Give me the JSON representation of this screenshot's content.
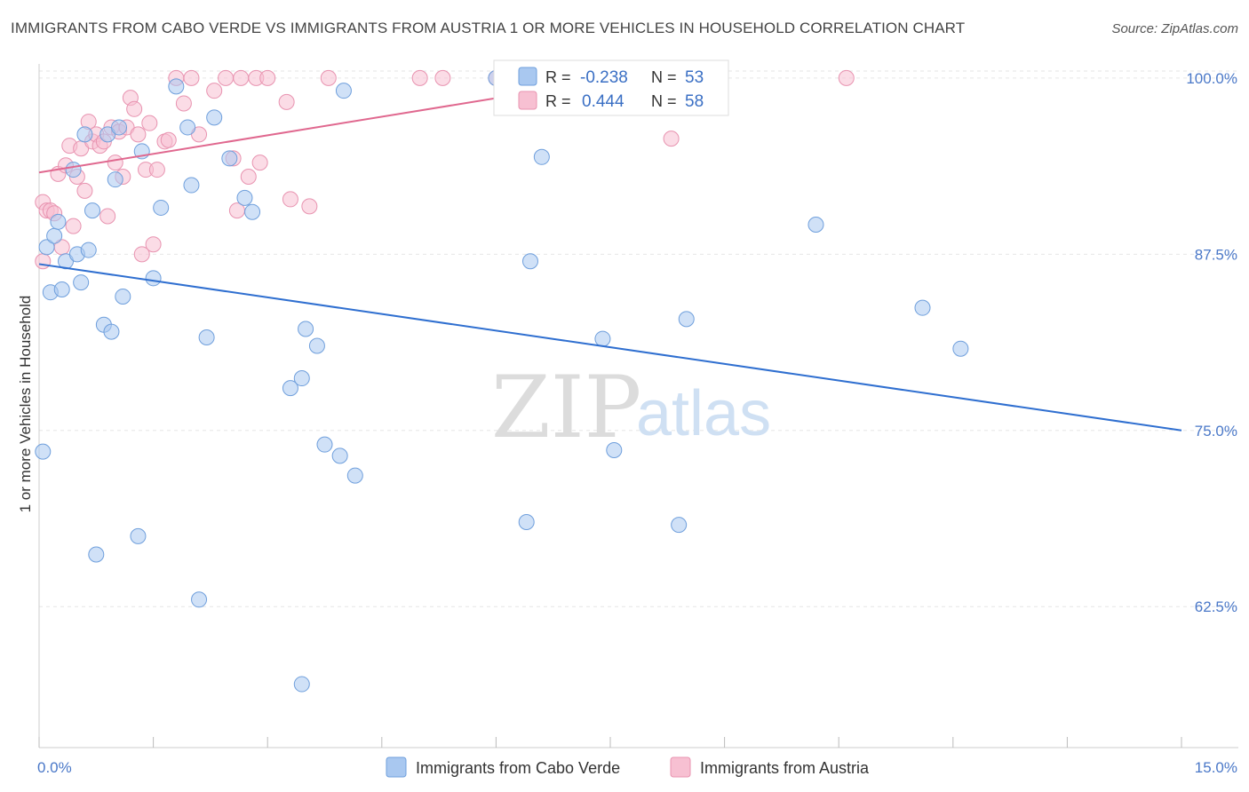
{
  "title": "IMMIGRANTS FROM CABO VERDE VS IMMIGRANTS FROM AUSTRIA 1 OR MORE VEHICLES IN HOUSEHOLD CORRELATION CHART",
  "source": "Source: ZipAtlas.com",
  "watermark": {
    "zip": "ZIP",
    "atlas": "atlas"
  },
  "colors": {
    "blue_fill": "#a9c8f0",
    "blue_stroke": "#6f9fdc",
    "blue_line": "#2f6fd0",
    "pink_fill": "#f7c0d2",
    "pink_stroke": "#e893b0",
    "pink_line": "#e0688f",
    "tick_text": "#4a78c8",
    "grid": "#e6e6e6"
  },
  "legend_box": {
    "rows": [
      {
        "r_label": "R = ",
        "r_value": "-0.238",
        "n_label": "N = ",
        "n_value": "53",
        "series": "blue"
      },
      {
        "r_label": "R = ",
        "r_value": "0.444",
        "n_label": "N = ",
        "n_value": "58",
        "series": "pink"
      }
    ]
  },
  "chart_data": {
    "type": "scatter",
    "title": "IMMIGRANTS FROM CABO VERDE VS IMMIGRANTS FROM AUSTRIA 1 OR MORE VEHICLES IN HOUSEHOLD CORRELATION CHART",
    "xlabel": "",
    "ylabel": "1 or more Vehicles in Household",
    "xlim": [
      0,
      15
    ],
    "ylim": [
      52.5,
      101
    ],
    "x_tick_labels": [
      {
        "value": 0,
        "label": "0.0%"
      },
      {
        "value": 15,
        "label": "15.0%"
      }
    ],
    "y_ticks": [
      {
        "value": 100,
        "label": "100.0%"
      },
      {
        "value": 87.5,
        "label": "87.5%"
      },
      {
        "value": 75,
        "label": "75.0%"
      },
      {
        "value": 62.5,
        "label": "62.5%"
      }
    ],
    "legend_position": "bottom-center",
    "series": [
      {
        "name": "Immigrants from Cabo Verde",
        "color": "blue",
        "R": -0.238,
        "N": 53,
        "trend": {
          "x": [
            0,
            15
          ],
          "y": [
            86.8,
            75.0
          ]
        },
        "points": [
          [
            0.05,
            73.5
          ],
          [
            0.1,
            88.0
          ],
          [
            0.15,
            84.8
          ],
          [
            0.2,
            88.8
          ],
          [
            0.25,
            89.8
          ],
          [
            0.3,
            85.0
          ],
          [
            0.35,
            87.0
          ],
          [
            0.45,
            93.5
          ],
          [
            0.5,
            87.5
          ],
          [
            0.55,
            85.5
          ],
          [
            0.6,
            96.0
          ],
          [
            0.65,
            87.8
          ],
          [
            0.7,
            90.6
          ],
          [
            0.75,
            66.2
          ],
          [
            0.85,
            82.5
          ],
          [
            0.9,
            96.0
          ],
          [
            0.95,
            82.0
          ],
          [
            1.0,
            92.8
          ],
          [
            1.05,
            96.5
          ],
          [
            1.1,
            84.5
          ],
          [
            1.3,
            67.5
          ],
          [
            1.35,
            94.8
          ],
          [
            1.5,
            85.8
          ],
          [
            1.6,
            90.8
          ],
          [
            1.8,
            99.4
          ],
          [
            1.95,
            96.5
          ],
          [
            2.0,
            92.4
          ],
          [
            2.1,
            63.0
          ],
          [
            2.2,
            81.6
          ],
          [
            2.3,
            97.2
          ],
          [
            2.5,
            94.3
          ],
          [
            2.7,
            91.5
          ],
          [
            2.8,
            90.5
          ],
          [
            3.3,
            78.0
          ],
          [
            3.5,
            82.2
          ],
          [
            3.65,
            81.0
          ],
          [
            3.45,
            57.0
          ],
          [
            3.45,
            78.7
          ],
          [
            3.75,
            74.0
          ],
          [
            3.95,
            73.2
          ],
          [
            4.0,
            99.1
          ],
          [
            4.15,
            71.8
          ],
          [
            6.4,
            68.5
          ],
          [
            6.45,
            87.0
          ],
          [
            6.6,
            94.4
          ],
          [
            7.4,
            81.5
          ],
          [
            7.55,
            73.6
          ],
          [
            8.4,
            68.3
          ],
          [
            8.5,
            82.9
          ],
          [
            10.2,
            89.6
          ],
          [
            11.6,
            83.7
          ],
          [
            12.1,
            80.8
          ],
          [
            6.0,
            100.0
          ]
        ]
      },
      {
        "name": "Immigrants from Austria",
        "color": "pink",
        "R": 0.444,
        "N": 58,
        "trend": {
          "x": [
            0,
            6.6
          ],
          "y": [
            93.3,
            99.1
          ]
        },
        "points": [
          [
            0.05,
            87.0
          ],
          [
            0.05,
            91.2
          ],
          [
            0.1,
            90.6
          ],
          [
            0.15,
            90.6
          ],
          [
            0.2,
            90.4
          ],
          [
            0.25,
            93.2
          ],
          [
            0.3,
            88.0
          ],
          [
            0.35,
            93.8
          ],
          [
            0.4,
            95.2
          ],
          [
            0.45,
            89.5
          ],
          [
            0.5,
            93.0
          ],
          [
            0.55,
            95.0
          ],
          [
            0.6,
            92.0
          ],
          [
            0.65,
            96.9
          ],
          [
            0.7,
            95.5
          ],
          [
            0.75,
            96.0
          ],
          [
            0.8,
            95.2
          ],
          [
            0.85,
            95.5
          ],
          [
            0.9,
            90.2
          ],
          [
            0.95,
            96.5
          ],
          [
            1.0,
            94.0
          ],
          [
            1.05,
            96.2
          ],
          [
            1.1,
            93.0
          ],
          [
            1.15,
            96.5
          ],
          [
            1.2,
            98.6
          ],
          [
            1.25,
            97.8
          ],
          [
            1.3,
            96.0
          ],
          [
            1.35,
            87.5
          ],
          [
            1.4,
            93.5
          ],
          [
            1.45,
            96.8
          ],
          [
            1.5,
            88.2
          ],
          [
            1.55,
            93.5
          ],
          [
            1.65,
            95.5
          ],
          [
            1.7,
            95.6
          ],
          [
            1.8,
            100.0
          ],
          [
            2.0,
            100.0
          ],
          [
            1.9,
            98.2
          ],
          [
            2.1,
            96.0
          ],
          [
            2.3,
            99.1
          ],
          [
            2.45,
            100.0
          ],
          [
            2.55,
            94.3
          ],
          [
            2.6,
            90.6
          ],
          [
            2.85,
            100.0
          ],
          [
            2.65,
            100.0
          ],
          [
            2.75,
            93.0
          ],
          [
            2.9,
            94.0
          ],
          [
            3.0,
            100.0
          ],
          [
            3.25,
            98.3
          ],
          [
            3.3,
            91.4
          ],
          [
            3.55,
            90.9
          ],
          [
            3.8,
            100.0
          ],
          [
            5.0,
            100.0
          ],
          [
            5.3,
            100.0
          ],
          [
            6.0,
            100.0
          ],
          [
            7.7,
            100.0
          ],
          [
            8.3,
            95.7
          ],
          [
            10.6,
            100.0
          ],
          [
            6.5,
            100.0
          ]
        ]
      }
    ]
  }
}
